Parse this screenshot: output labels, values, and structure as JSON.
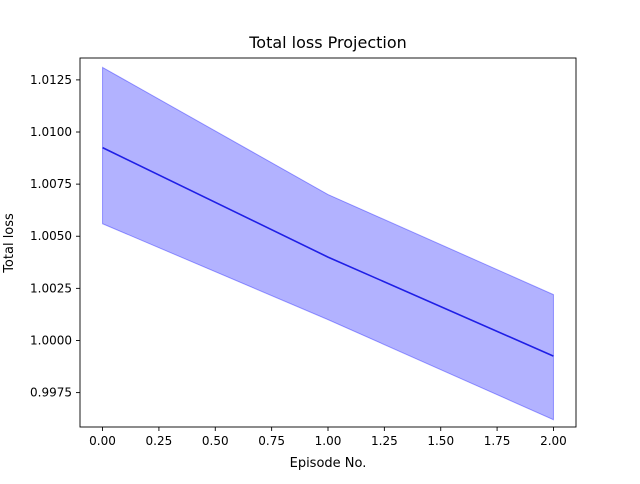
{
  "chart_data": {
    "type": "line",
    "title": "Total loss Projection",
    "xlabel": "Episode No.",
    "ylabel": "Total loss",
    "x": [
      0,
      1,
      2
    ],
    "series": [
      {
        "values": [
          1.00925,
          1.004,
          0.99925
        ],
        "upper": [
          1.0131,
          1.007,
          1.0022
        ],
        "lower": [
          1.0056,
          1.001,
          0.9962
        ]
      }
    ],
    "xlim": [
      -0.1,
      2.1
    ],
    "ylim": [
      0.99585,
      1.01355
    ],
    "x_ticks": [
      "0.00",
      "0.25",
      "0.50",
      "0.75",
      "1.00",
      "1.25",
      "1.50",
      "1.75",
      "2.00"
    ],
    "y_ticks": [
      "0.9975",
      "1.0000",
      "1.0025",
      "1.0050",
      "1.0075",
      "1.0100",
      "1.0125"
    ],
    "grid": false,
    "colors": {
      "line": "#1f1fe6",
      "band": "#0000ff",
      "axes": "#000000"
    }
  }
}
